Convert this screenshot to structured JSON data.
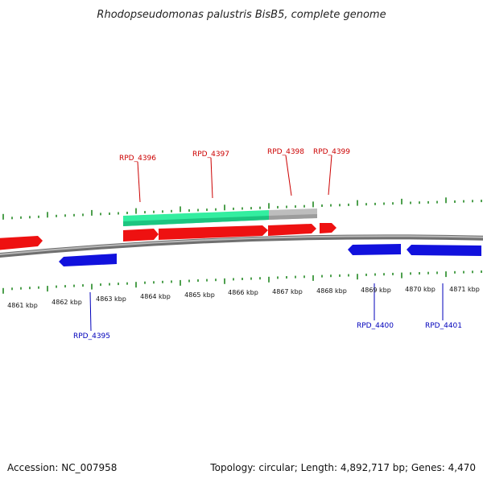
{
  "title": "Rhodopseudomonas palustris BisB5, complete genome",
  "footer": {
    "accession": "Accession: NC_007958",
    "summary": "Topology: circular; Length: 4,892,717 bp; Genes: 4,470"
  },
  "colors": {
    "forward_gene": "#ee1111",
    "reverse_gene": "#1111dd",
    "backbone": "#909090",
    "tick": "#228822",
    "highlight_green": "#33eea0",
    "highlight_grey": "#bbbbbb"
  },
  "kbp_labels": [
    "4861 kbp",
    "4862 kbp",
    "4863 kbp",
    "4864 kbp",
    "4865 kbp",
    "4866 kbp",
    "4867 kbp",
    "4868 kbp",
    "4869 kbp",
    "4870 kbp",
    "4871 kbp"
  ],
  "genes_forward_labeled": [
    "RPD_4396",
    "RPD_4397",
    "RPD_4398",
    "RPD_4399"
  ],
  "genes_reverse_labeled": [
    "RPD_4395",
    "RPD_4400",
    "RPD_4401"
  ]
}
